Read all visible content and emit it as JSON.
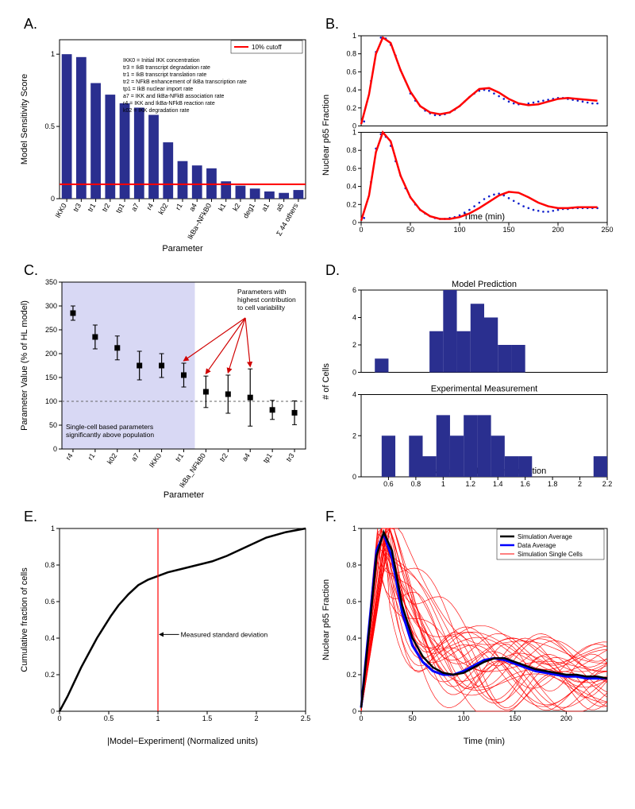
{
  "labels": {
    "A": "A.",
    "B": "B.",
    "C": "C.",
    "D": "D.",
    "E": "E.",
    "F": "F."
  },
  "A": {
    "type": "bar",
    "ylabel": "Model Sensitivity Score",
    "xlabel": "Parameter",
    "ylim": [
      0,
      1.1
    ],
    "yticks": [
      0,
      0.5,
      1
    ],
    "cutoff": 0.1,
    "legend": "10% cutoff",
    "bar_color": "#2a2f8f",
    "cutoff_color": "#ff0000",
    "box_color": "#000000",
    "categories": [
      "IKK0",
      "tr3",
      "tr1",
      "tr2",
      "tp1",
      "a7",
      "r4",
      "k02",
      "r1",
      "a4",
      "IkBa−NFkB0",
      "k1",
      "k2",
      "deg1",
      "a1",
      "a5",
      "Σ 44 others"
    ],
    "values": [
      1.0,
      0.98,
      0.8,
      0.72,
      0.66,
      0.63,
      0.58,
      0.39,
      0.26,
      0.23,
      0.21,
      0.12,
      0.09,
      0.07,
      0.05,
      0.04,
      0.06
    ],
    "defs": [
      "IKK0 = Initial IKK concentration",
      "tr3 = IkB transcript degradation rate",
      "tr1 = IkB transcript translation rate",
      "tr2 = NFkB enhancement of IkBa transcription rate",
      "tp1 = IkB nuclear import rate",
      "a7 = IKK and IkBa-NFkB association rate",
      "r4  = IKK and IkBa-NFkB reaction rate",
      "k02 = IKK degradation rate"
    ]
  },
  "B": {
    "type": "line",
    "ylabel": "Nuclear p65 Fraction",
    "xlabel": "Time (min)",
    "xlim": [
      0,
      250
    ],
    "ylim": [
      0,
      1
    ],
    "xticks": [
      0,
      50,
      100,
      150,
      200,
      250
    ],
    "yticks": [
      0,
      0.2,
      0.4,
      0.6,
      0.8,
      1
    ],
    "fit_color": "#ff0000",
    "dot_color": "#1020cc",
    "fit_width": 2.5,
    "top": {
      "fit_x": [
        0,
        8,
        15,
        22,
        30,
        40,
        50,
        60,
        70,
        80,
        90,
        100,
        110,
        120,
        130,
        140,
        150,
        160,
        170,
        180,
        190,
        200,
        210,
        220,
        230,
        240
      ],
      "fit_y": [
        0.02,
        0.35,
        0.8,
        0.98,
        0.92,
        0.62,
        0.38,
        0.22,
        0.15,
        0.13,
        0.15,
        0.22,
        0.32,
        0.41,
        0.42,
        0.37,
        0.3,
        0.25,
        0.23,
        0.24,
        0.27,
        0.3,
        0.31,
        0.3,
        0.29,
        0.28
      ],
      "dot_x": [
        3,
        10,
        15,
        20,
        25,
        30,
        35,
        40,
        45,
        50,
        55,
        60,
        65,
        70,
        75,
        80,
        85,
        90,
        95,
        100,
        105,
        110,
        115,
        120,
        125,
        130,
        135,
        140,
        145,
        150,
        155,
        160,
        165,
        170,
        175,
        180,
        185,
        190,
        195,
        200,
        205,
        210,
        215,
        220,
        225,
        230,
        235,
        240
      ],
      "dot_y": [
        0.05,
        0.5,
        0.82,
        0.98,
        0.97,
        0.9,
        0.78,
        0.62,
        0.5,
        0.36,
        0.28,
        0.22,
        0.17,
        0.14,
        0.12,
        0.12,
        0.13,
        0.15,
        0.18,
        0.22,
        0.27,
        0.32,
        0.36,
        0.39,
        0.4,
        0.39,
        0.36,
        0.33,
        0.3,
        0.27,
        0.25,
        0.24,
        0.24,
        0.25,
        0.26,
        0.27,
        0.28,
        0.29,
        0.3,
        0.31,
        0.31,
        0.3,
        0.29,
        0.28,
        0.27,
        0.26,
        0.25,
        0.25
      ]
    },
    "bottom": {
      "fit_x": [
        0,
        8,
        15,
        22,
        30,
        40,
        50,
        60,
        70,
        80,
        90,
        100,
        110,
        120,
        130,
        140,
        150,
        160,
        170,
        180,
        190,
        200,
        210,
        220,
        230,
        240
      ],
      "fit_y": [
        0.02,
        0.3,
        0.78,
        1.0,
        0.9,
        0.52,
        0.28,
        0.14,
        0.07,
        0.04,
        0.04,
        0.06,
        0.1,
        0.16,
        0.23,
        0.3,
        0.34,
        0.33,
        0.28,
        0.22,
        0.18,
        0.16,
        0.16,
        0.17,
        0.17,
        0.17
      ],
      "dot_x": [
        3,
        10,
        15,
        20,
        25,
        30,
        35,
        40,
        45,
        50,
        55,
        60,
        65,
        70,
        75,
        80,
        85,
        90,
        95,
        100,
        105,
        110,
        115,
        120,
        125,
        130,
        135,
        140,
        145,
        150,
        155,
        160,
        165,
        170,
        175,
        180,
        185,
        190,
        195,
        200,
        205,
        210,
        215,
        220,
        225,
        230,
        235,
        240
      ],
      "dot_y": [
        0.05,
        0.45,
        0.82,
        0.98,
        0.95,
        0.85,
        0.68,
        0.52,
        0.38,
        0.28,
        0.2,
        0.14,
        0.1,
        0.07,
        0.05,
        0.04,
        0.04,
        0.05,
        0.06,
        0.08,
        0.11,
        0.14,
        0.18,
        0.22,
        0.26,
        0.29,
        0.31,
        0.32,
        0.3,
        0.27,
        0.24,
        0.21,
        0.18,
        0.16,
        0.14,
        0.13,
        0.12,
        0.12,
        0.13,
        0.14,
        0.15,
        0.15,
        0.16,
        0.16,
        0.16,
        0.16,
        0.16,
        0.16
      ]
    }
  },
  "C": {
    "type": "errorbar",
    "ylabel": "Parameter Value (% of HL model)",
    "xlabel": "Parameter",
    "ylim": [
      0,
      350
    ],
    "yticks": [
      0,
      50,
      100,
      150,
      200,
      250,
      300,
      350
    ],
    "shade_color": "#c8c8f0",
    "marker_color": "#000000",
    "hline": 100,
    "shade_upto": 6,
    "categories": [
      "r4",
      "r1",
      "k02",
      "a7",
      "IKK0",
      "tr1",
      "IkBa_NFkB0",
      "tr2",
      "a4",
      "tp1",
      "tr3"
    ],
    "means": [
      285,
      235,
      212,
      175,
      175,
      155,
      120,
      115,
      108,
      82,
      76
    ],
    "err": [
      15,
      25,
      25,
      30,
      25,
      25,
      33,
      40,
      60,
      20,
      25
    ],
    "anno1": "Single-cell based parameters\nsignificantly above population",
    "anno2": "Parameters with\nhighest contribution\nto cell variability",
    "arrow_color": "#d00000"
  },
  "D": {
    "type": "histogram",
    "top_title": "Model Prediction",
    "bottom_title": "Experimental Measurement",
    "xlabel": "Initial IkBa –NFkB concentration",
    "ylabel": "# of Cells",
    "xlim": [
      0.4,
      2.2
    ],
    "xticks": [
      0.6,
      0.8,
      1,
      1.2,
      1.4,
      1.6,
      1.8,
      2,
      2.2
    ],
    "bar_color": "#2a2f8f",
    "top": {
      "ylim": [
        0,
        6
      ],
      "yticks": [
        0,
        2,
        4,
        6
      ],
      "edges": [
        0.5,
        0.6,
        0.7,
        0.8,
        0.9,
        1.0,
        1.1,
        1.2,
        1.3,
        1.4,
        1.5,
        1.6
      ],
      "counts": [
        1,
        0,
        0,
        0,
        3,
        6,
        3,
        5,
        4,
        2,
        2
      ]
    },
    "bottom": {
      "ylim": [
        0,
        4
      ],
      "yticks": [
        0,
        2,
        4
      ],
      "edges": [
        0.55,
        0.65,
        0.75,
        0.85,
        0.95,
        1.05,
        1.15,
        1.25,
        1.35,
        1.45,
        1.55,
        1.65,
        2.1,
        2.2
      ],
      "counts": [
        2,
        0,
        2,
        1,
        3,
        2,
        3,
        3,
        2,
        1,
        1,
        0,
        1
      ]
    }
  },
  "E": {
    "type": "line",
    "ylabel": "Cumulative fraction of cells",
    "xlabel": "|Model−Experiment| (Normalized units)",
    "xlim": [
      0,
      2.5
    ],
    "ylim": [
      0,
      1
    ],
    "xticks": [
      0,
      0.5,
      1,
      1.5,
      2,
      2.5
    ],
    "yticks": [
      0,
      0.2,
      0.4,
      0.6,
      0.8,
      1
    ],
    "vline": 1.0,
    "vline_color": "#ff0000",
    "line_color": "#000000",
    "anno": "Measured standard deviation",
    "x": [
      0,
      0.08,
      0.15,
      0.22,
      0.3,
      0.38,
      0.45,
      0.52,
      0.6,
      0.7,
      0.8,
      0.9,
      1.0,
      1.1,
      1.25,
      1.4,
      1.55,
      1.7,
      1.9,
      2.1,
      2.3,
      2.5
    ],
    "y": [
      0.0,
      0.08,
      0.16,
      0.24,
      0.32,
      0.4,
      0.46,
      0.52,
      0.58,
      0.64,
      0.69,
      0.72,
      0.74,
      0.76,
      0.78,
      0.8,
      0.82,
      0.85,
      0.9,
      0.95,
      0.98,
      1.0
    ]
  },
  "F": {
    "type": "line",
    "ylabel": "Nuclear p65 Fraction",
    "xlabel": "Time (min)",
    "xlim": [
      0,
      240
    ],
    "ylim": [
      0,
      1
    ],
    "xticks": [
      0,
      50,
      100,
      150,
      200
    ],
    "yticks": [
      0,
      0.2,
      0.4,
      0.6,
      0.8,
      1
    ],
    "legend": [
      "Simulation Average",
      "Data Average",
      "Simulation Single Cells"
    ],
    "colors": {
      "sim_avg": "#000000",
      "data_avg": "#0000ff",
      "single": "#ff0000"
    },
    "seed": 42,
    "n_single": 30,
    "avg_x": [
      0,
      8,
      15,
      22,
      30,
      40,
      50,
      60,
      70,
      80,
      90,
      100,
      110,
      120,
      130,
      140,
      150,
      160,
      170,
      180,
      190,
      200,
      210,
      220,
      230,
      240
    ],
    "sim_avg_y": [
      0.02,
      0.45,
      0.85,
      0.98,
      0.88,
      0.58,
      0.4,
      0.3,
      0.24,
      0.21,
      0.2,
      0.21,
      0.24,
      0.27,
      0.29,
      0.29,
      0.27,
      0.25,
      0.23,
      0.22,
      0.21,
      0.2,
      0.2,
      0.19,
      0.19,
      0.18
    ],
    "data_avg_y": [
      0.02,
      0.48,
      0.88,
      0.97,
      0.84,
      0.54,
      0.36,
      0.27,
      0.22,
      0.2,
      0.2,
      0.22,
      0.25,
      0.28,
      0.29,
      0.28,
      0.26,
      0.24,
      0.22,
      0.21,
      0.2,
      0.19,
      0.19,
      0.18,
      0.18,
      0.18
    ]
  }
}
